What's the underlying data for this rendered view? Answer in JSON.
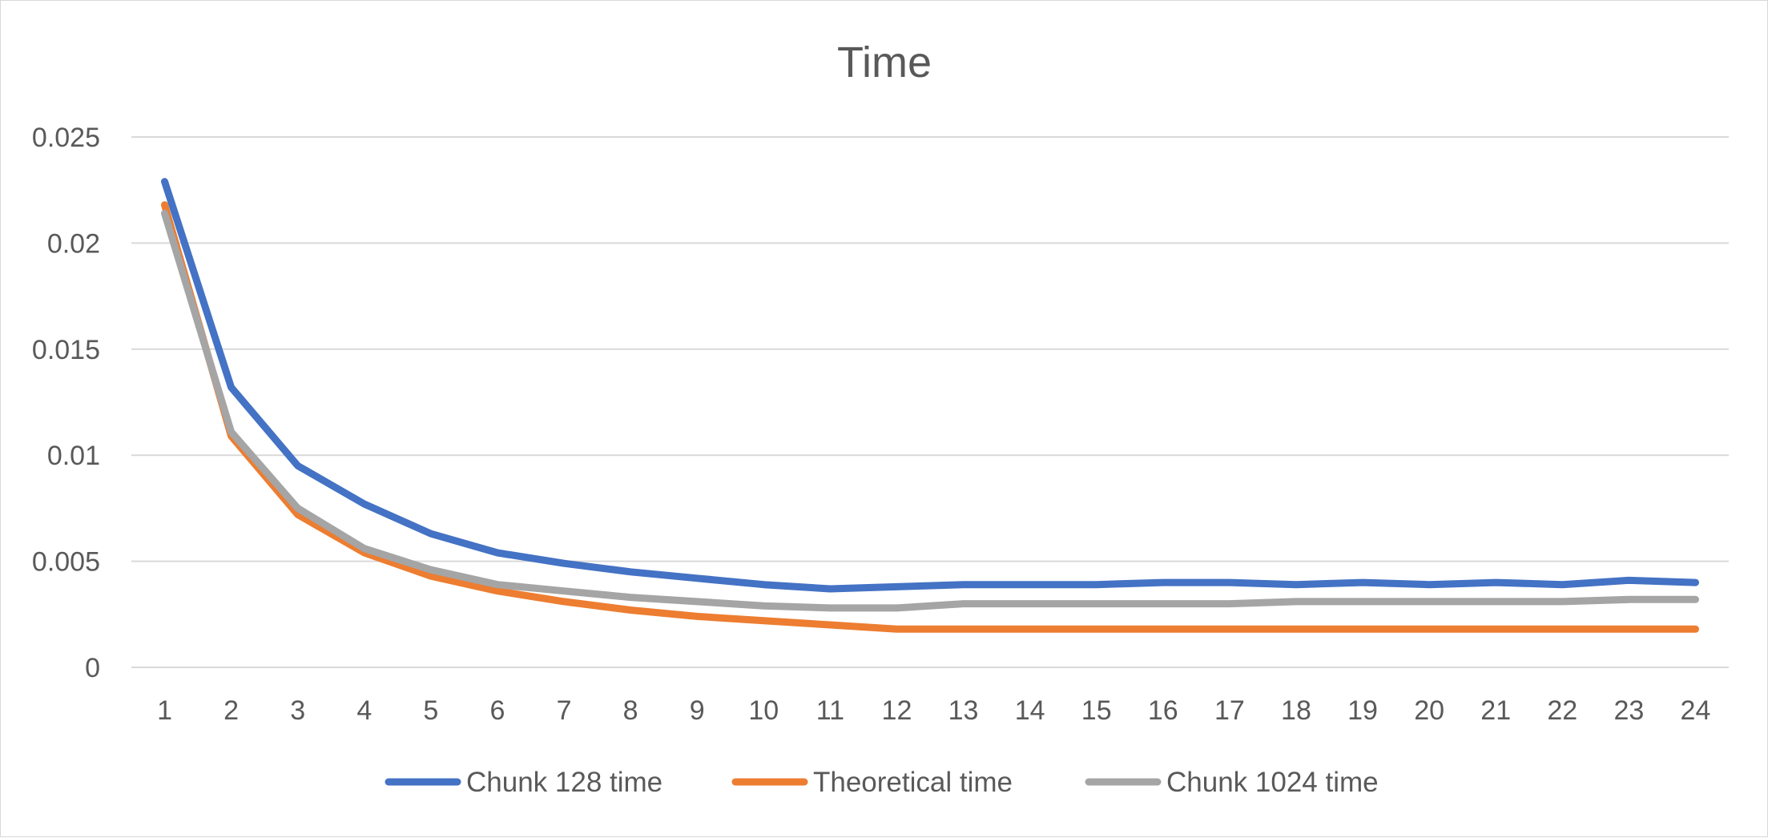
{
  "chart_data": {
    "type": "line",
    "title": "Time",
    "xlabel": "",
    "ylabel": "",
    "categories": [
      "1",
      "2",
      "3",
      "4",
      "5",
      "6",
      "7",
      "8",
      "9",
      "10",
      "11",
      "12",
      "13",
      "14",
      "15",
      "16",
      "17",
      "18",
      "19",
      "20",
      "21",
      "22",
      "23",
      "24"
    ],
    "ylim": [
      0,
      0.025
    ],
    "yticks": [
      "0",
      "0.005",
      "0.01",
      "0.015",
      "0.02",
      "0.025"
    ],
    "ytick_values": [
      0,
      0.005,
      0.01,
      0.015,
      0.02,
      0.025
    ],
    "grid": true,
    "legend_position": "bottom",
    "series": [
      {
        "name": "Chunk 128 time",
        "color": "#4472C4",
        "values": [
          0.0229,
          0.0132,
          0.0095,
          0.0077,
          0.0063,
          0.0054,
          0.0049,
          0.0045,
          0.0042,
          0.0039,
          0.0037,
          0.0038,
          0.0039,
          0.0039,
          0.0039,
          0.004,
          0.004,
          0.0039,
          0.004,
          0.0039,
          0.004,
          0.0039,
          0.0041,
          0.004
        ]
      },
      {
        "name": "Theoretical time",
        "color": "#ED7D31",
        "values": [
          0.0218,
          0.0109,
          0.0072,
          0.0054,
          0.0043,
          0.0036,
          0.0031,
          0.0027,
          0.0024,
          0.0022,
          0.002,
          0.0018,
          0.0018,
          0.0018,
          0.0018,
          0.0018,
          0.0018,
          0.0018,
          0.0018,
          0.0018,
          0.0018,
          0.0018,
          0.0018,
          0.0018
        ]
      },
      {
        "name": "Chunk 1024 time",
        "color": "#A5A5A5",
        "values": [
          0.0214,
          0.0111,
          0.0075,
          0.0056,
          0.0046,
          0.0039,
          0.0036,
          0.0033,
          0.0031,
          0.0029,
          0.0028,
          0.0028,
          0.003,
          0.003,
          0.003,
          0.003,
          0.003,
          0.0031,
          0.0031,
          0.0031,
          0.0031,
          0.0031,
          0.0032,
          0.0032
        ]
      }
    ]
  }
}
